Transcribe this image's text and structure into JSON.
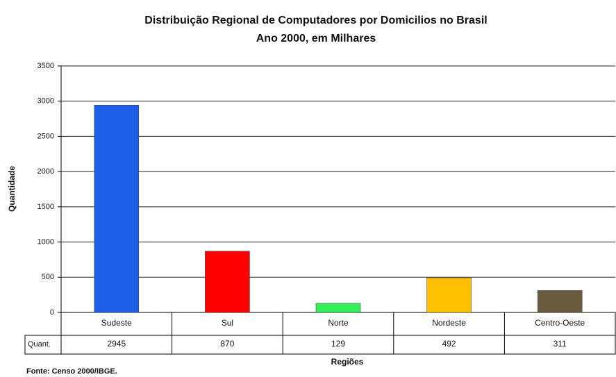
{
  "chart_data": {
    "type": "bar",
    "title": "Distribuição Regional de Computadores por Domicilios no Brasil",
    "subtitle": "Ano 2000, em Milhares",
    "y_label": "Quantidade",
    "x_label": "Regiões",
    "source": "Fonte: Censo 2000/IBGE.",
    "table_row_label": "Quant.",
    "categories": [
      "Sudeste",
      "Sul",
      "Norte",
      "Nordeste",
      "Centro-Oeste"
    ],
    "values": [
      2945,
      870,
      129,
      492,
      311
    ],
    "colors": [
      "#1f5fe8",
      "#ff0000",
      "#33ee55",
      "#ffc000",
      "#6b5b3e"
    ],
    "ylim": [
      0,
      3500
    ],
    "yticks": [
      0,
      500,
      1000,
      1500,
      2000,
      2500,
      3000,
      3500
    ],
    "grid": true
  }
}
